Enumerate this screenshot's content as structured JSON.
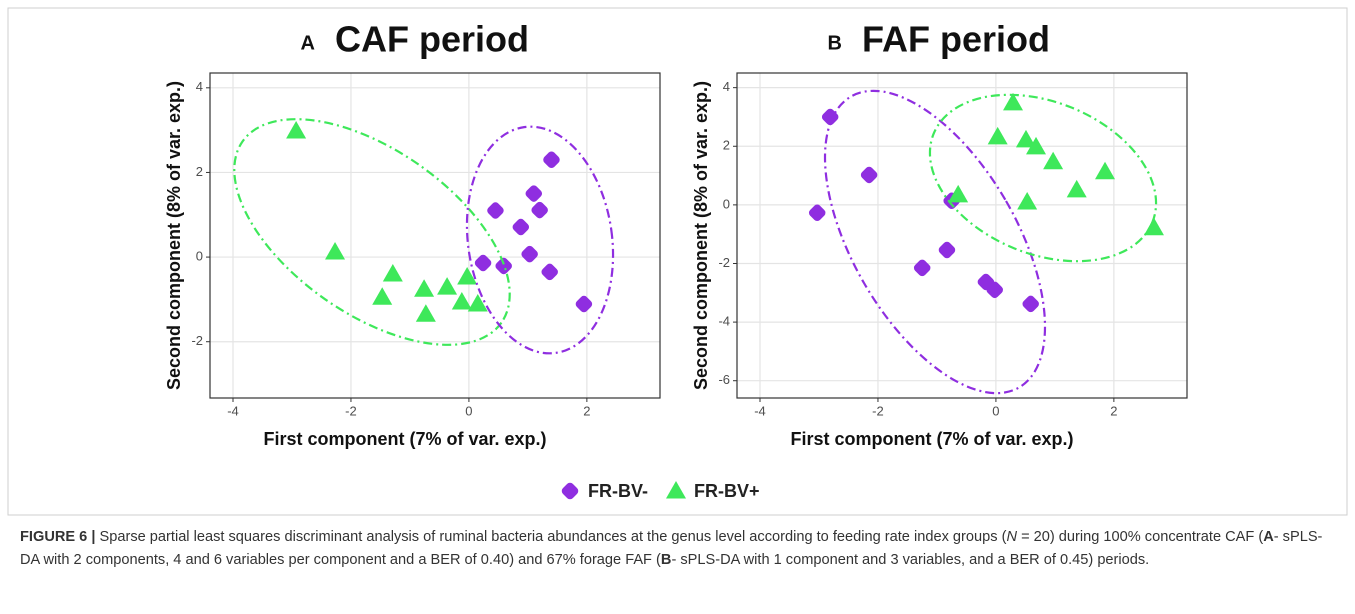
{
  "chart_data": [
    {
      "type": "scatter",
      "label": "A",
      "title": "CAF period",
      "x_label": "First component (7% of var. exp.)",
      "y_label": "Second component (8% of var. exp.)",
      "xlim": [
        -4.39,
        3.24
      ],
      "ylim": [
        -3.33,
        4.35
      ],
      "xticks": [
        -4,
        -2,
        0,
        2
      ],
      "yticks": [
        -2,
        0,
        2,
        4
      ],
      "grid": true,
      "series": [
        {
          "name": "FR-BV-",
          "color": "#8f2ee0",
          "marker": "circle",
          "x": [
            1.4,
            1.1,
            1.2,
            0.45,
            0.88,
            1.03,
            0.59,
            0.24,
            1.37,
            1.95
          ],
          "y": [
            2.3,
            1.5,
            1.11,
            1.1,
            0.71,
            0.07,
            -0.21,
            -0.14,
            -0.35,
            -1.11
          ]
        },
        {
          "name": "FR-BV+",
          "color": "#3ee85a",
          "marker": "triangle",
          "x": [
            -2.93,
            -2.27,
            -1.29,
            -1.47,
            -0.76,
            -0.73,
            -0.37,
            -0.03,
            -0.12,
            0.15
          ],
          "y": [
            2.98,
            0.12,
            -0.4,
            -0.95,
            -0.76,
            -1.35,
            -0.71,
            -0.47,
            -1.06,
            -1.11
          ]
        }
      ]
    },
    {
      "type": "scatter",
      "label": "B",
      "title": "FAF period",
      "x_label": "First component (7% of var. exp.)",
      "y_label": "Second component (8% of var. exp.)",
      "xlim": [
        -4.39,
        3.24
      ],
      "ylim": [
        -6.59,
        4.5
      ],
      "xticks": [
        -4,
        -2,
        0,
        2
      ],
      "yticks": [
        -6,
        -4,
        -2,
        0,
        2,
        4
      ],
      "grid": true,
      "series": [
        {
          "color": "#8f2ee0",
          "marker": "circle",
          "x": [
            -2.81,
            -2.15,
            -3.03,
            -0.75,
            -0.83,
            -1.25,
            -0.17,
            -0.02,
            0.59
          ],
          "y": [
            3.0,
            1.02,
            -0.27,
            0.14,
            -1.54,
            -2.15,
            -2.63,
            -2.9,
            -3.38
          ]
        },
        {
          "color": "#3ee85a",
          "marker": "triangle",
          "x": [
            0.29,
            0.03,
            0.51,
            0.68,
            0.97,
            -0.64,
            0.53,
            1.37,
            1.85,
            2.68
          ],
          "y": [
            3.48,
            2.32,
            2.22,
            1.98,
            1.47,
            0.34,
            0.1,
            0.51,
            1.13,
            -0.78
          ]
        }
      ]
    }
  ],
  "caption": {
    "label": "FIGURE 6 |",
    "parts": [
      " Sparse partial least squares discriminant analysis of ruminal bacteria abundances at the genus level according to feeding rate index groups (",
      "N",
      " = 20) during 100% concentrate CAF (",
      "A",
      "- sPLS-DA with 2 components, 4 and 6 variables per component and a BER of 0.40) and 67% forage FAF (",
      "B",
      "- sPLS-DA with 1 component and 3 variables, and a BER of 0.45) periods."
    ]
  }
}
